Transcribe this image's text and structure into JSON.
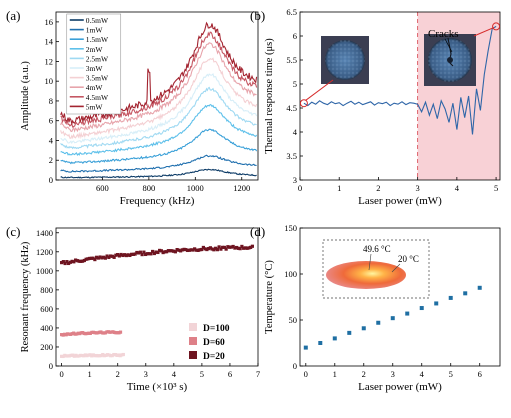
{
  "chart_data": [
    {
      "panel_label": "(a)",
      "type": "line",
      "xlabel": "Frequency (kHz)",
      "ylabel": "Amplitude (a.u.)",
      "xlim": [
        400,
        1270
      ],
      "ylim": [
        0,
        17
      ],
      "xticks": [
        600,
        800,
        1000,
        1200
      ],
      "yticks": [
        0,
        2,
        4,
        6,
        8,
        10,
        12,
        14,
        16
      ],
      "legend_position": "top-left",
      "series": [
        {
          "name": "0.5mW",
          "color": "#0b3a66",
          "base": 0.25,
          "peak": 1.0,
          "noise": 0.06
        },
        {
          "name": "1mW",
          "color": "#1f6fae",
          "base": 0.9,
          "peak": 2.2,
          "noise": 0.08
        },
        {
          "name": "1.5mW",
          "color": "#3aa0d8",
          "base": 1.8,
          "peak": 4.6,
          "noise": 0.1
        },
        {
          "name": "2mW",
          "color": "#5ec0ea",
          "base": 2.7,
          "peak": 6.8,
          "noise": 0.12
        },
        {
          "name": "2.5mW",
          "color": "#9fd9f2",
          "base": 3.4,
          "peak": 8.3,
          "noise": 0.14
        },
        {
          "name": "3mW",
          "color": "#d7eef8",
          "base": 4.0,
          "peak": 9.6,
          "noise": 0.16
        },
        {
          "name": "3.5mW",
          "color": "#f4d0d3",
          "base": 4.6,
          "peak": 11.0,
          "noise": 0.18
        },
        {
          "name": "4mW",
          "color": "#e7a4ab",
          "base": 5.3,
          "peak": 12.3,
          "noise": 0.22
        },
        {
          "name": "4.5mW",
          "color": "#c55763",
          "base": 5.9,
          "peak": 13.1,
          "noise": 0.28
        },
        {
          "name": "5mW",
          "color": "#a32430",
          "base": 6.3,
          "peak": 14.0,
          "noise": 0.35
        }
      ]
    },
    {
      "panel_label": "(b)",
      "type": "line",
      "xlabel": "Laser power (mW)",
      "ylabel": "Thermal response time (μs)",
      "xlim": [
        0,
        5.1
      ],
      "ylim": [
        3,
        6.5
      ],
      "xticks": [
        0,
        1,
        2,
        3,
        4,
        5
      ],
      "yticks": [
        3,
        3.5,
        4,
        4.5,
        5,
        5.5,
        6,
        6.5
      ],
      "shaded_region_x": [
        3,
        5.1
      ],
      "threshold_x": 3,
      "annotation": "Cracks",
      "series": [
        {
          "color": "#2f66a8",
          "x": [
            0.1,
            0.2,
            0.3,
            0.4,
            0.5,
            0.6,
            0.7,
            0.8,
            0.9,
            1.0,
            1.1,
            1.2,
            1.3,
            1.4,
            1.5,
            1.6,
            1.7,
            1.8,
            1.9,
            2.0,
            2.1,
            2.2,
            2.3,
            2.4,
            2.5,
            2.6,
            2.7,
            2.8,
            2.9,
            3.0,
            3.1,
            3.2,
            3.3,
            3.4,
            3.5,
            3.6,
            3.7,
            3.8,
            3.9,
            4.0,
            4.1,
            4.2,
            4.3,
            4.4,
            4.5,
            4.6,
            4.7,
            4.8,
            4.9,
            5.0
          ],
          "y": [
            4.6,
            4.55,
            4.62,
            4.58,
            4.65,
            4.6,
            4.57,
            4.63,
            4.59,
            4.61,
            4.55,
            4.6,
            4.64,
            4.58,
            4.62,
            4.57,
            4.6,
            4.63,
            4.56,
            4.61,
            4.59,
            4.62,
            4.55,
            4.6,
            4.58,
            4.63,
            4.57,
            4.61,
            4.6,
            4.58,
            4.42,
            4.62,
            4.35,
            4.58,
            4.28,
            4.65,
            4.48,
            4.2,
            4.6,
            4.05,
            4.72,
            4.3,
            4.75,
            3.95,
            4.9,
            4.45,
            5.2,
            5.7,
            6.15,
            6.2
          ]
        }
      ]
    },
    {
      "panel_label": "(c)",
      "type": "scatter",
      "xlabel": "Time (×10³ s)",
      "ylabel": "Resonant frequency (kHz)",
      "xlim": [
        -0.2,
        7
      ],
      "ylim": [
        0,
        1450
      ],
      "xticks": [
        0,
        1,
        2,
        3,
        4,
        5,
        6,
        7
      ],
      "yticks": [
        0,
        200,
        400,
        600,
        800,
        1000,
        1200,
        1400
      ],
      "legend_position": "bottom-right",
      "series": [
        {
          "name": "D=100",
          "color": "#f2d4d7",
          "x_range": [
            0,
            2.2
          ],
          "y_start": 105,
          "y_end": 115,
          "n": 40
        },
        {
          "name": "D=60",
          "color": "#de8088",
          "x_range": [
            0,
            2.1
          ],
          "y_start": 330,
          "y_end": 355,
          "n": 40
        },
        {
          "name": "D=20",
          "color": "#6e1420",
          "x_range": [
            0,
            6.8
          ],
          "y_start": 1080,
          "y_end": 1245,
          "n": 110
        }
      ]
    },
    {
      "panel_label": "(d)",
      "type": "scatter",
      "xlabel": "Laser power (mW)",
      "ylabel": "Temperature (°C)",
      "xlim": [
        -0.2,
        6.7
      ],
      "ylim": [
        0,
        150
      ],
      "xticks": [
        0,
        1,
        2,
        3,
        4,
        5,
        6
      ],
      "yticks": [
        0,
        50,
        100,
        150
      ],
      "inset_hot_label": "49.6 °C",
      "inset_cold_label": "20 °C",
      "series": [
        {
          "color": "#1f6fa3",
          "x": [
            0,
            0.5,
            1.0,
            1.5,
            2.0,
            2.5,
            3.0,
            3.5,
            4.0,
            4.5,
            5.0,
            5.5,
            6.0
          ],
          "y": [
            20,
            25,
            30,
            36,
            41,
            47,
            52,
            57,
            63,
            68,
            74,
            79,
            85
          ]
        }
      ]
    }
  ]
}
